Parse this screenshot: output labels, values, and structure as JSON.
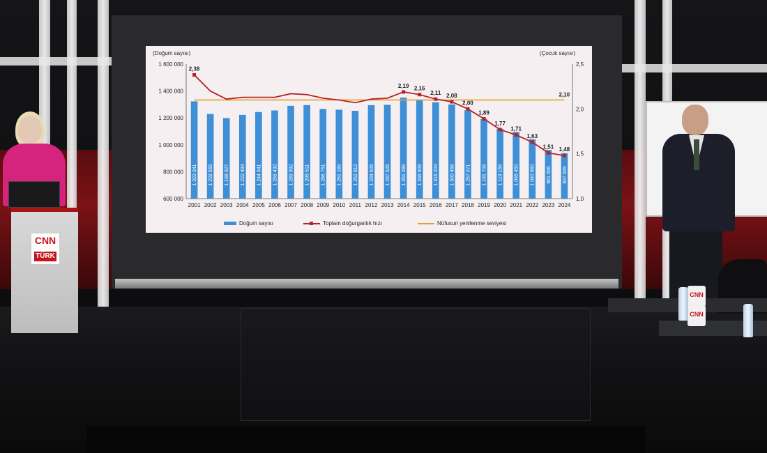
{
  "chart_data": {
    "type": "bar",
    "categories": [
      "2001",
      "2002",
      "2003",
      "2004",
      "2005",
      "2006",
      "2007",
      "2008",
      "2009",
      "2010",
      "2011",
      "2012",
      "2013",
      "2014",
      "2015",
      "2016",
      "2017",
      "2018",
      "2019",
      "2020",
      "2021",
      "2022",
      "2023",
      "2024"
    ],
    "series": [
      {
        "name": "Doğum sayısı",
        "type": "bar",
        "axis": "left",
        "color": "#3e8fd6",
        "values": [
          1323341,
          1229555,
          1198927,
          1222484,
          1244041,
          1255432,
          1289992,
          1295511,
          1266751,
          1261169,
          1252812,
          1294605,
          1297505,
          1351088,
          1336908,
          1316204,
          1300458,
          1257071,
          1191709,
          1119155,
          1095450,
          1040860,
          961566,
          937559
        ],
        "labels": [
          "1 323 341",
          "1 229 555",
          "1 198 927",
          "1 222 484",
          "1 244 041",
          "1 255 432",
          "1 289 992",
          "1 295 511",
          "1 266 751",
          "1 261 169",
          "1 252 812",
          "1 294 605",
          "1 297 505",
          "1 351 088",
          "1 336 908",
          "1 316 204",
          "1 300 458",
          "1 257 071",
          "1 191 709",
          "1 119 155",
          "1 095 450",
          "1 040 860",
          "961 566",
          "937 559"
        ]
      },
      {
        "name": "Toplam doğurganlık hızı",
        "type": "line",
        "axis": "right",
        "color": "#b32429",
        "values": [
          2.38,
          2.2,
          2.11,
          2.13,
          2.13,
          2.13,
          2.17,
          2.16,
          2.12,
          2.1,
          2.07,
          2.11,
          2.12,
          2.19,
          2.16,
          2.11,
          2.08,
          2.0,
          1.89,
          1.77,
          1.71,
          1.63,
          1.51,
          1.48
        ],
        "labels": [
          "2,38",
          "",
          "",
          "",
          "",
          "",
          "",
          "",
          "",
          "",
          "",
          "",
          "",
          "2,19",
          "2,16",
          "2,11",
          "2,08",
          "2,00",
          "1,89",
          "1,77",
          "1,71",
          "1,63",
          "1,51",
          "1,48"
        ]
      },
      {
        "name": "Nüfusun yenilenme seviyesi",
        "type": "line",
        "axis": "right",
        "color": "#e6a22c",
        "values": [
          2.1,
          2.1,
          2.1,
          2.1,
          2.1,
          2.1,
          2.1,
          2.1,
          2.1,
          2.1,
          2.1,
          2.1,
          2.1,
          2.1,
          2.1,
          2.1,
          2.1,
          2.1,
          2.1,
          2.1,
          2.1,
          2.1,
          2.1,
          2.1
        ],
        "labels": [
          "",
          "",
          "",
          "",
          "",
          "",
          "",
          "",
          "",
          "",
          "",
          "",
          "",
          "",
          "",
          "",
          "",
          "",
          "",
          "",
          "",
          "",
          "",
          "2,10"
        ]
      }
    ],
    "ylabel_left": "(Doğum sayısı)",
    "ylabel_right": "(Çocuk sayısı)",
    "ylim_left": [
      600000,
      1600000
    ],
    "ylim_right": [
      1.0,
      2.5
    ],
    "yticks_left": [
      "600 000",
      "800 000",
      "1 000 000",
      "1 200 000",
      "1 400 000",
      "1 600 000"
    ],
    "yticks_right": [
      "1,0",
      "1,5",
      "2,0",
      "2,5"
    ],
    "legend_position": "bottom",
    "grid": false
  },
  "legend": {
    "bar": "Doğum sayısı",
    "line_red": "Toplam doğurganlık hızı",
    "line_orange": "Nüfusun yenilenme seviyesi"
  },
  "podium": {
    "brand_top": "CNN",
    "brand_bottom": "TÜRK"
  },
  "mug": {
    "brand": "CNN"
  }
}
